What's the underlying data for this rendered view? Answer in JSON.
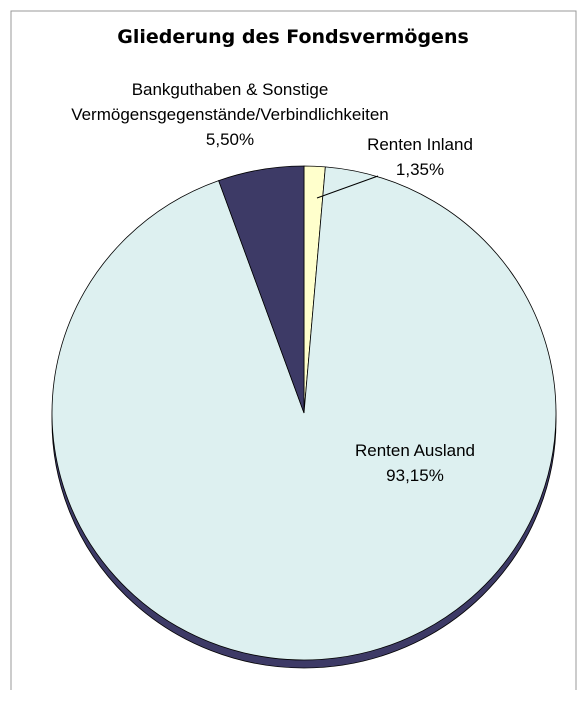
{
  "chart_data": {
    "type": "pie",
    "title": "Gliederung des Fondsvermögens",
    "categories": [
      "Renten Inland",
      "Renten Ausland",
      "Bankguthaben & Sonstige Vermögensgegenstände/Verbindlichkeiten"
    ],
    "values": [
      1.35,
      93.15,
      5.5
    ],
    "value_labels": [
      "1,35%",
      "93,15%",
      "5,50%"
    ],
    "colors": [
      "#ffffcc",
      "#ddf0f0",
      "#3d3a66"
    ]
  }
}
